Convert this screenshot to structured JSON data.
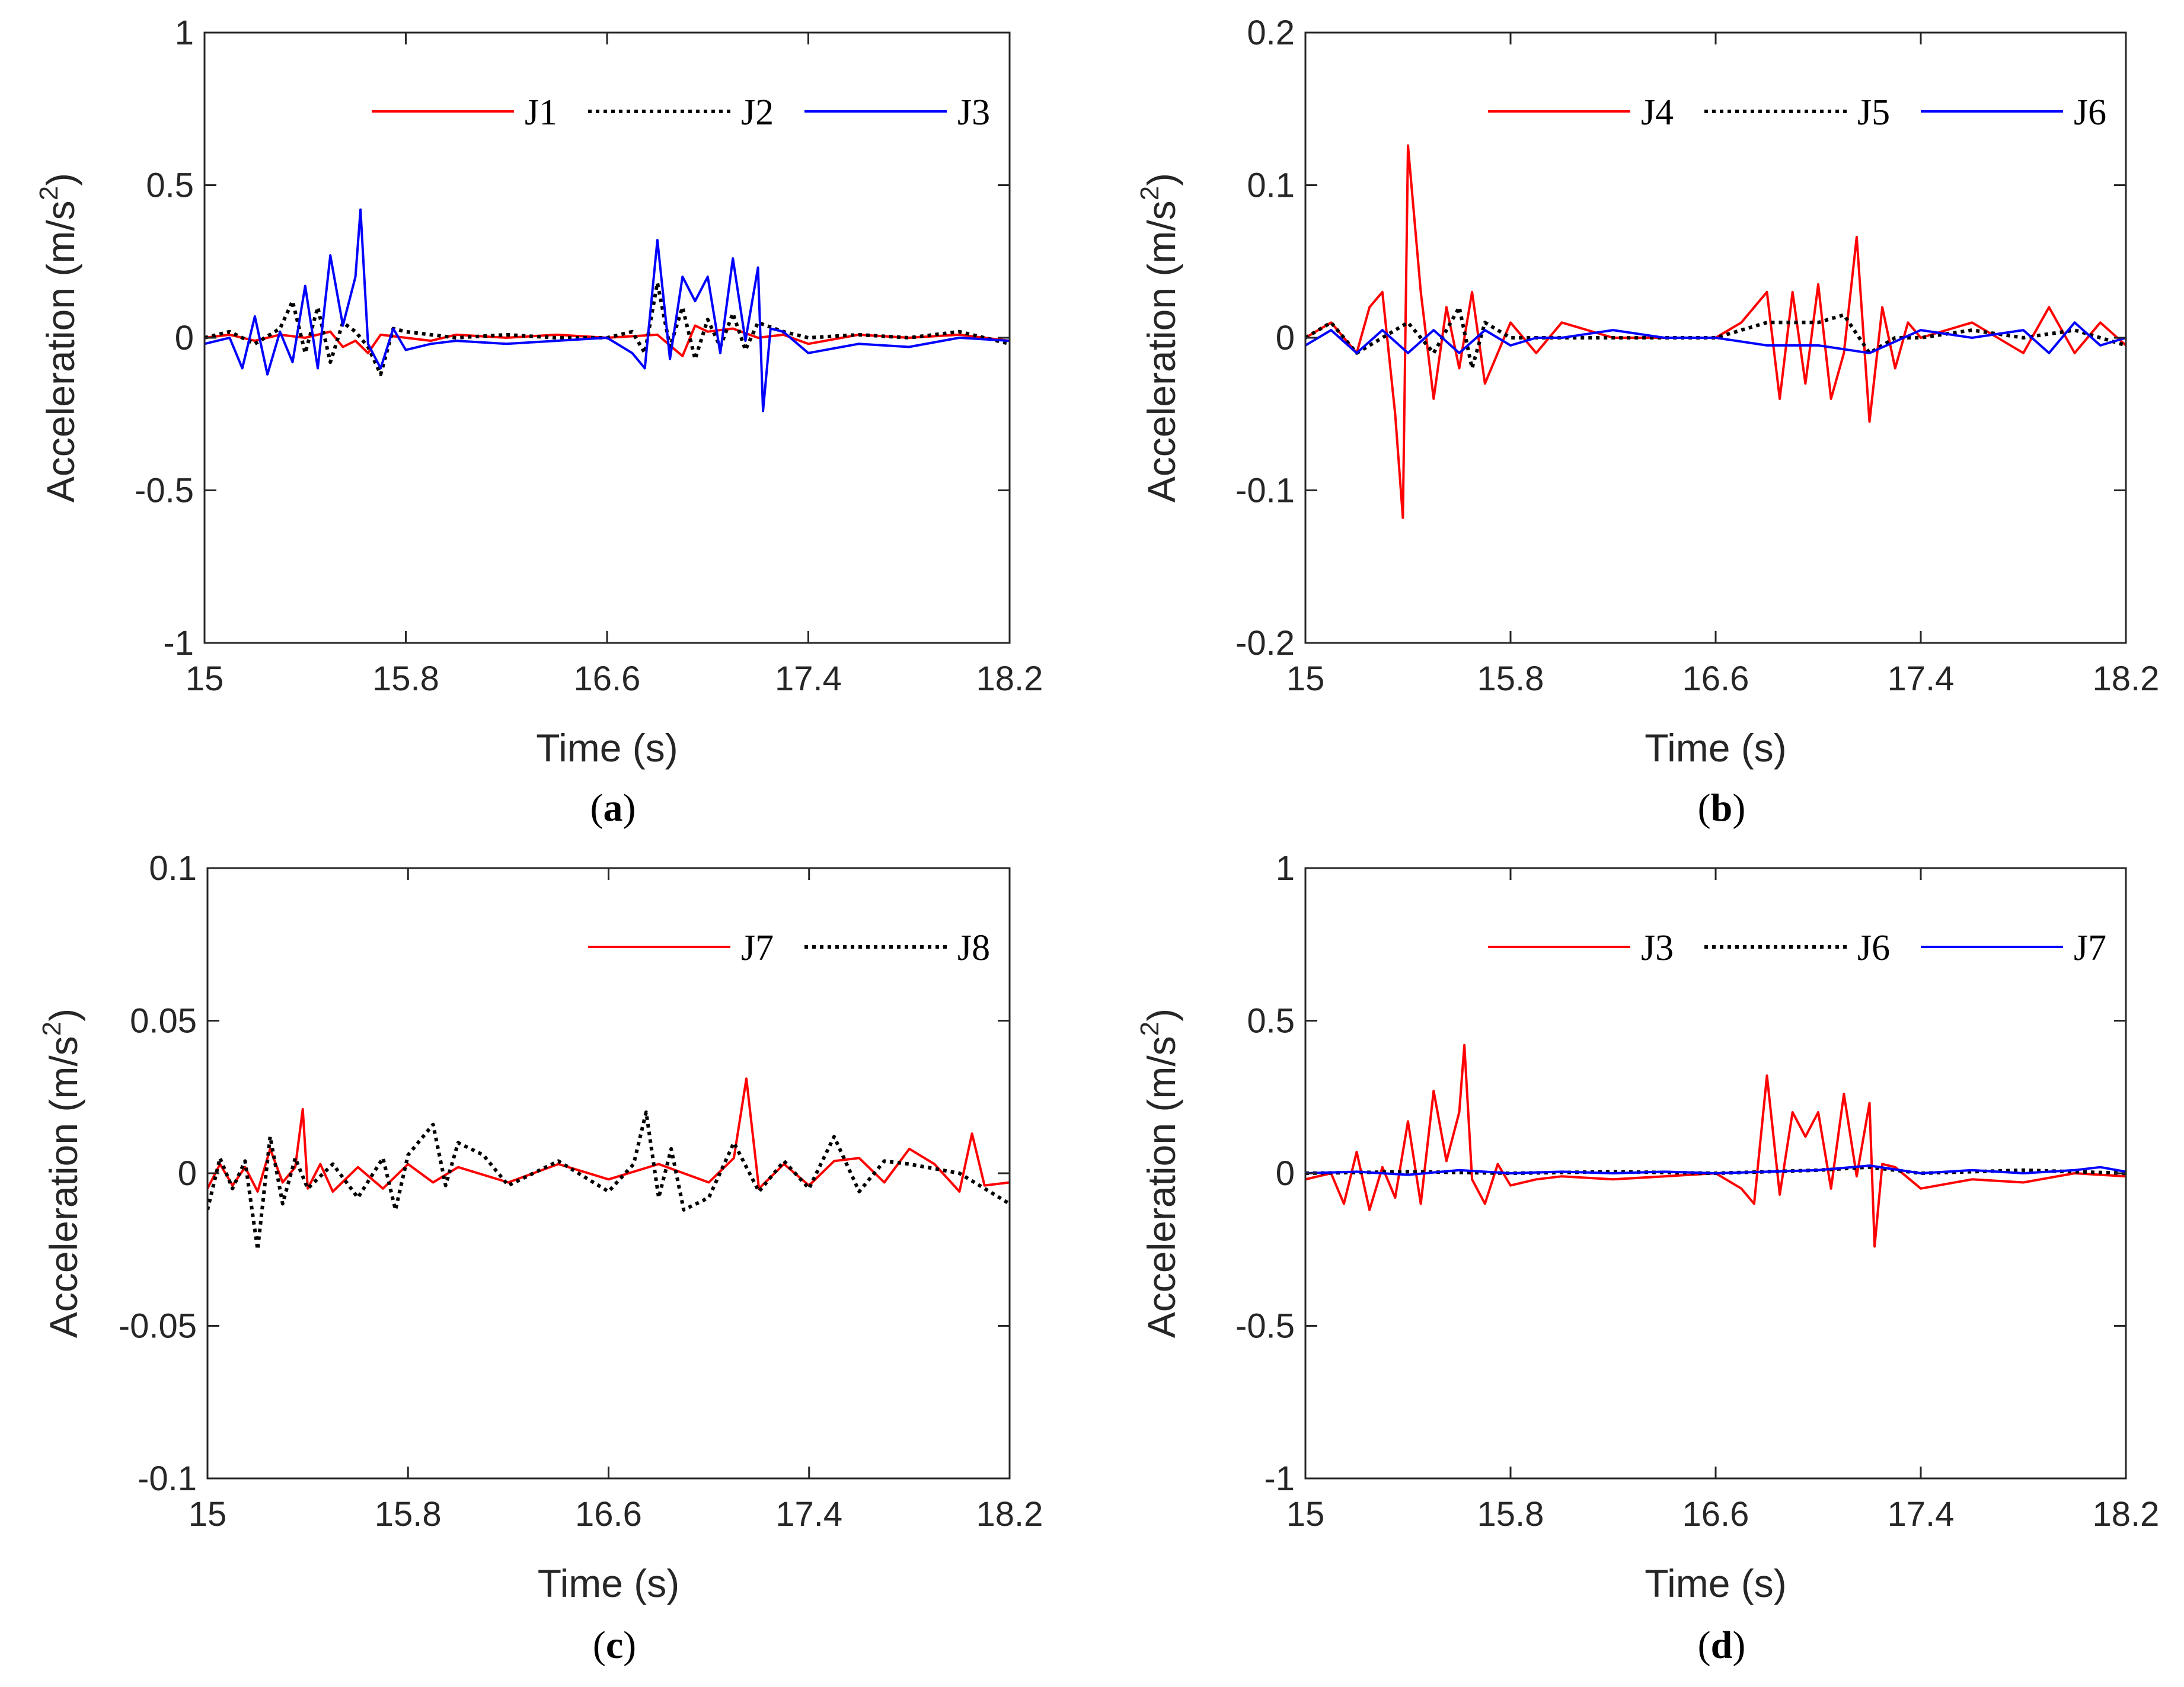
{
  "chart_data": [
    {
      "type": "line",
      "panel_label": "a",
      "xlabel": "Time (s)",
      "ylabel": "Acceleration (m/s",
      "ylabel_sup": "2",
      "ylabel_end": ")",
      "xlim": [
        15,
        18.2
      ],
      "ylim": [
        -1,
        1
      ],
      "xticks": [
        15,
        15.8,
        16.6,
        17.4,
        18.2
      ],
      "xtick_labels": [
        "15",
        "15.8",
        "16.6",
        "17.4",
        "18.2"
      ],
      "yticks": [
        -1,
        -0.5,
        0,
        0.5,
        1
      ],
      "ytick_labels": [
        "-1",
        "-0.5",
        "0",
        "0.5",
        "1"
      ],
      "legend_position": "top-right",
      "series": [
        {
          "name": "J1",
          "color": "#ff0000",
          "style": "solid",
          "x": [
            15.0,
            15.1,
            15.2,
            15.3,
            15.4,
            15.5,
            15.55,
            15.6,
            15.65,
            15.7,
            15.8,
            15.9,
            16.0,
            16.2,
            16.4,
            16.6,
            16.8,
            16.9,
            16.95,
            17.0,
            17.1,
            17.2,
            17.3,
            17.4,
            17.6,
            17.8,
            18.0,
            18.2
          ],
          "y": [
            0.0,
            0.01,
            -0.01,
            0.01,
            0.0,
            0.02,
            -0.03,
            -0.01,
            -0.05,
            0.01,
            0.0,
            -0.01,
            0.01,
            0.0,
            0.01,
            0.0,
            0.01,
            -0.06,
            0.04,
            0.02,
            0.03,
            0.0,
            0.01,
            -0.02,
            0.01,
            0.0,
            0.01,
            -0.01
          ]
        },
        {
          "name": "J2",
          "color": "#000000",
          "style": "dotted",
          "x": [
            15.0,
            15.1,
            15.2,
            15.3,
            15.35,
            15.4,
            15.45,
            15.5,
            15.55,
            15.6,
            15.65,
            15.7,
            15.75,
            15.8,
            15.9,
            16.0,
            16.2,
            16.4,
            16.6,
            16.7,
            16.75,
            16.8,
            16.85,
            16.9,
            16.95,
            17.0,
            17.05,
            17.1,
            17.15,
            17.2,
            17.3,
            17.4,
            17.6,
            17.8,
            18.0,
            18.2
          ],
          "y": [
            0.0,
            0.02,
            -0.02,
            0.03,
            0.12,
            -0.05,
            0.1,
            -0.08,
            0.05,
            0.02,
            -0.03,
            -0.12,
            0.03,
            0.02,
            0.01,
            0.0,
            0.01,
            0.0,
            0.0,
            0.02,
            -0.05,
            0.18,
            -0.03,
            0.1,
            -0.07,
            0.06,
            -0.03,
            0.08,
            -0.04,
            0.05,
            0.02,
            0.0,
            0.01,
            0.0,
            0.02,
            -0.02
          ]
        },
        {
          "name": "J3",
          "color": "#0000ff",
          "style": "solid",
          "x": [
            15.0,
            15.1,
            15.15,
            15.2,
            15.25,
            15.3,
            15.35,
            15.4,
            15.45,
            15.5,
            15.55,
            15.6,
            15.62,
            15.65,
            15.7,
            15.75,
            15.8,
            15.9,
            16.0,
            16.2,
            16.4,
            16.6,
            16.7,
            16.75,
            16.8,
            16.85,
            16.9,
            16.95,
            17.0,
            17.05,
            17.1,
            17.15,
            17.2,
            17.22,
            17.25,
            17.3,
            17.4,
            17.6,
            17.8,
            18.0,
            18.2
          ],
          "y": [
            -0.02,
            0.0,
            -0.1,
            0.07,
            -0.12,
            0.02,
            -0.08,
            0.17,
            -0.1,
            0.27,
            0.04,
            0.2,
            0.42,
            -0.02,
            -0.1,
            0.03,
            -0.04,
            -0.02,
            -0.01,
            -0.02,
            -0.01,
            0.0,
            -0.05,
            -0.1,
            0.32,
            -0.07,
            0.2,
            0.12,
            0.2,
            -0.05,
            0.26,
            -0.01,
            0.23,
            -0.24,
            0.03,
            0.02,
            -0.05,
            -0.02,
            -0.03,
            0.0,
            -0.01
          ]
        }
      ]
    },
    {
      "type": "line",
      "panel_label": "b",
      "xlabel": "Time (s)",
      "ylabel": "Acceleration (m/s",
      "ylabel_sup": "2",
      "ylabel_end": ")",
      "xlim": [
        15,
        18.2
      ],
      "ylim": [
        -0.2,
        0.2
      ],
      "xticks": [
        15,
        15.8,
        16.6,
        17.4,
        18.2
      ],
      "xtick_labels": [
        "15",
        "15.8",
        "16.6",
        "17.4",
        "18.2"
      ],
      "yticks": [
        -0.2,
        -0.1,
        0,
        0.1,
        0.2
      ],
      "ytick_labels": [
        "-0.2",
        "-0.1",
        "0",
        "0.1",
        "0.2"
      ],
      "legend_position": "top-right",
      "series": [
        {
          "name": "J4",
          "color": "#ff0000",
          "style": "solid",
          "x": [
            15.0,
            15.1,
            15.2,
            15.25,
            15.3,
            15.35,
            15.38,
            15.4,
            15.45,
            15.5,
            15.55,
            15.6,
            15.65,
            15.7,
            15.8,
            15.9,
            16.0,
            16.2,
            16.4,
            16.6,
            16.7,
            16.8,
            16.85,
            16.9,
            16.95,
            17.0,
            17.05,
            17.1,
            17.15,
            17.2,
            17.25,
            17.3,
            17.35,
            17.4,
            17.6,
            17.8,
            17.9,
            18.0,
            18.1,
            18.2
          ],
          "y": [
            0.0,
            0.01,
            -0.01,
            0.02,
            0.03,
            -0.05,
            -0.118,
            0.126,
            0.03,
            -0.04,
            0.02,
            -0.02,
            0.03,
            -0.03,
            0.01,
            -0.01,
            0.01,
            0.0,
            0.0,
            0.0,
            0.01,
            0.03,
            -0.04,
            0.03,
            -0.03,
            0.035,
            -0.04,
            -0.01,
            0.066,
            -0.055,
            0.02,
            -0.02,
            0.01,
            0.0,
            0.01,
            -0.01,
            0.02,
            -0.01,
            0.01,
            -0.005
          ]
        },
        {
          "name": "J5",
          "color": "#000000",
          "style": "dotted",
          "x": [
            15.0,
            15.1,
            15.2,
            15.3,
            15.4,
            15.5,
            15.6,
            15.65,
            15.7,
            15.8,
            15.9,
            16.0,
            16.2,
            16.4,
            16.6,
            16.8,
            17.0,
            17.1,
            17.2,
            17.3,
            17.4,
            17.6,
            17.8,
            18.0,
            18.2
          ],
          "y": [
            0.0,
            0.01,
            -0.01,
            0.0,
            0.01,
            -0.01,
            0.02,
            -0.02,
            0.01,
            0.0,
            0.0,
            0.0,
            0.0,
            0.0,
            0.0,
            0.01,
            0.01,
            0.015,
            -0.01,
            0.0,
            0.0,
            0.005,
            0.0,
            0.005,
            -0.005
          ]
        },
        {
          "name": "J6",
          "color": "#0000ff",
          "style": "solid",
          "x": [
            15.0,
            15.1,
            15.2,
            15.3,
            15.4,
            15.5,
            15.6,
            15.7,
            15.8,
            15.9,
            16.0,
            16.2,
            16.4,
            16.6,
            16.8,
            17.0,
            17.2,
            17.4,
            17.6,
            17.8,
            17.9,
            18.0,
            18.1,
            18.2
          ],
          "y": [
            -0.005,
            0.005,
            -0.01,
            0.005,
            -0.01,
            0.005,
            -0.01,
            0.005,
            -0.005,
            0.0,
            0.0,
            0.005,
            0.0,
            0.0,
            -0.005,
            -0.005,
            -0.01,
            0.005,
            0.0,
            0.005,
            -0.01,
            0.01,
            -0.005,
            0.0
          ]
        }
      ]
    },
    {
      "type": "line",
      "panel_label": "c",
      "xlabel": "Time (s)",
      "ylabel": "Acceleration (m/s",
      "ylabel_sup": "2",
      "ylabel_end": ")",
      "xlim": [
        15,
        18.2
      ],
      "ylim": [
        -0.1,
        0.1
      ],
      "xticks": [
        15,
        15.8,
        16.6,
        17.4,
        18.2
      ],
      "xtick_labels": [
        "15",
        "15.8",
        "16.6",
        "17.4",
        "18.2"
      ],
      "yticks": [
        -0.1,
        -0.05,
        0,
        0.05,
        0.1
      ],
      "ytick_labels": [
        "-0.1",
        "-0.05",
        "0",
        "0.05",
        "0.1"
      ],
      "legend_position": "top-right",
      "series": [
        {
          "name": "J7",
          "color": "#ff0000",
          "style": "solid",
          "x": [
            15.0,
            15.05,
            15.1,
            15.15,
            15.2,
            15.25,
            15.3,
            15.35,
            15.38,
            15.4,
            15.45,
            15.5,
            15.6,
            15.7,
            15.8,
            15.9,
            16.0,
            16.2,
            16.4,
            16.6,
            16.8,
            17.0,
            17.1,
            17.15,
            17.2,
            17.3,
            17.4,
            17.5,
            17.6,
            17.7,
            17.8,
            17.9,
            18.0,
            18.05,
            18.1,
            18.2
          ],
          "y": [
            -0.005,
            0.003,
            -0.004,
            0.002,
            -0.006,
            0.008,
            -0.003,
            0.002,
            0.021,
            -0.005,
            0.003,
            -0.006,
            0.002,
            -0.005,
            0.003,
            -0.003,
            0.002,
            -0.003,
            0.003,
            -0.002,
            0.003,
            -0.003,
            0.005,
            0.031,
            -0.005,
            0.003,
            -0.004,
            0.004,
            0.005,
            -0.003,
            0.008,
            0.003,
            -0.006,
            0.013,
            -0.004,
            -0.003
          ]
        },
        {
          "name": "J8",
          "color": "#000000",
          "style": "dotted",
          "x": [
            15.0,
            15.05,
            15.1,
            15.15,
            15.2,
            15.25,
            15.3,
            15.35,
            15.4,
            15.5,
            15.6,
            15.7,
            15.75,
            15.8,
            15.9,
            15.95,
            16.0,
            16.1,
            16.2,
            16.4,
            16.6,
            16.7,
            16.75,
            16.8,
            16.85,
            16.9,
            17.0,
            17.1,
            17.2,
            17.3,
            17.4,
            17.5,
            17.6,
            17.7,
            17.8,
            18.0,
            18.2
          ],
          "y": [
            -0.012,
            0.005,
            -0.005,
            0.004,
            -0.025,
            0.012,
            -0.01,
            0.005,
            -0.005,
            0.003,
            -0.008,
            0.005,
            -0.012,
            0.006,
            0.016,
            -0.004,
            0.01,
            0.006,
            -0.004,
            0.004,
            -0.006,
            0.003,
            0.02,
            -0.008,
            0.008,
            -0.012,
            -0.008,
            0.01,
            -0.006,
            0.004,
            -0.005,
            0.012,
            -0.006,
            0.004,
            0.003,
            0.0,
            -0.01
          ]
        }
      ]
    },
    {
      "type": "line",
      "panel_label": "d",
      "xlabel": "Time (s)",
      "ylabel": "Acceleration (m/s",
      "ylabel_sup": "2",
      "ylabel_end": ")",
      "xlim": [
        15,
        18.2
      ],
      "ylim": [
        -1,
        1
      ],
      "xticks": [
        15,
        15.8,
        16.6,
        17.4,
        18.2
      ],
      "xtick_labels": [
        "15",
        "15.8",
        "16.6",
        "17.4",
        "18.2"
      ],
      "yticks": [
        -1,
        -0.5,
        0,
        0.5,
        1
      ],
      "ytick_labels": [
        "-1",
        "-0.5",
        "0",
        "0.5",
        "1"
      ],
      "legend_position": "top-right",
      "series": [
        {
          "name": "J3",
          "color": "#ff0000",
          "style": "solid",
          "x": [
            15.0,
            15.1,
            15.15,
            15.2,
            15.25,
            15.3,
            15.35,
            15.4,
            15.45,
            15.5,
            15.55,
            15.6,
            15.62,
            15.65,
            15.7,
            15.75,
            15.8,
            15.9,
            16.0,
            16.2,
            16.4,
            16.6,
            16.7,
            16.75,
            16.8,
            16.85,
            16.9,
            16.95,
            17.0,
            17.05,
            17.1,
            17.15,
            17.2,
            17.22,
            17.25,
            17.3,
            17.4,
            17.6,
            17.8,
            18.0,
            18.2
          ],
          "y": [
            -0.02,
            0.0,
            -0.1,
            0.07,
            -0.12,
            0.02,
            -0.08,
            0.17,
            -0.1,
            0.27,
            0.04,
            0.2,
            0.42,
            -0.02,
            -0.1,
            0.03,
            -0.04,
            -0.02,
            -0.01,
            -0.02,
            -0.01,
            0.0,
            -0.05,
            -0.1,
            0.32,
            -0.07,
            0.2,
            0.12,
            0.2,
            -0.05,
            0.26,
            -0.01,
            0.23,
            -0.24,
            0.03,
            0.02,
            -0.05,
            -0.02,
            -0.03,
            0.0,
            -0.01
          ]
        },
        {
          "name": "J6",
          "color": "#000000",
          "style": "dotted",
          "x": [
            15.0,
            15.4,
            15.8,
            16.2,
            16.6,
            17.0,
            17.2,
            17.4,
            17.8,
            18.2
          ],
          "y": [
            0.0,
            0.005,
            0.0,
            0.005,
            0.0,
            0.01,
            0.02,
            0.0,
            0.01,
            0.0
          ]
        },
        {
          "name": "J7",
          "color": "#0000ff",
          "style": "solid",
          "x": [
            15.0,
            15.2,
            15.4,
            15.6,
            15.8,
            16.0,
            16.2,
            16.4,
            16.6,
            16.8,
            17.0,
            17.2,
            17.4,
            17.6,
            17.8,
            18.0,
            18.1,
            18.2
          ],
          "y": [
            0.0,
            0.005,
            -0.005,
            0.01,
            0.0,
            0.005,
            0.0,
            0.005,
            0.0,
            0.005,
            0.01,
            0.025,
            0.0,
            0.01,
            0.0,
            0.01,
            0.02,
            0.005
          ]
        }
      ]
    }
  ]
}
